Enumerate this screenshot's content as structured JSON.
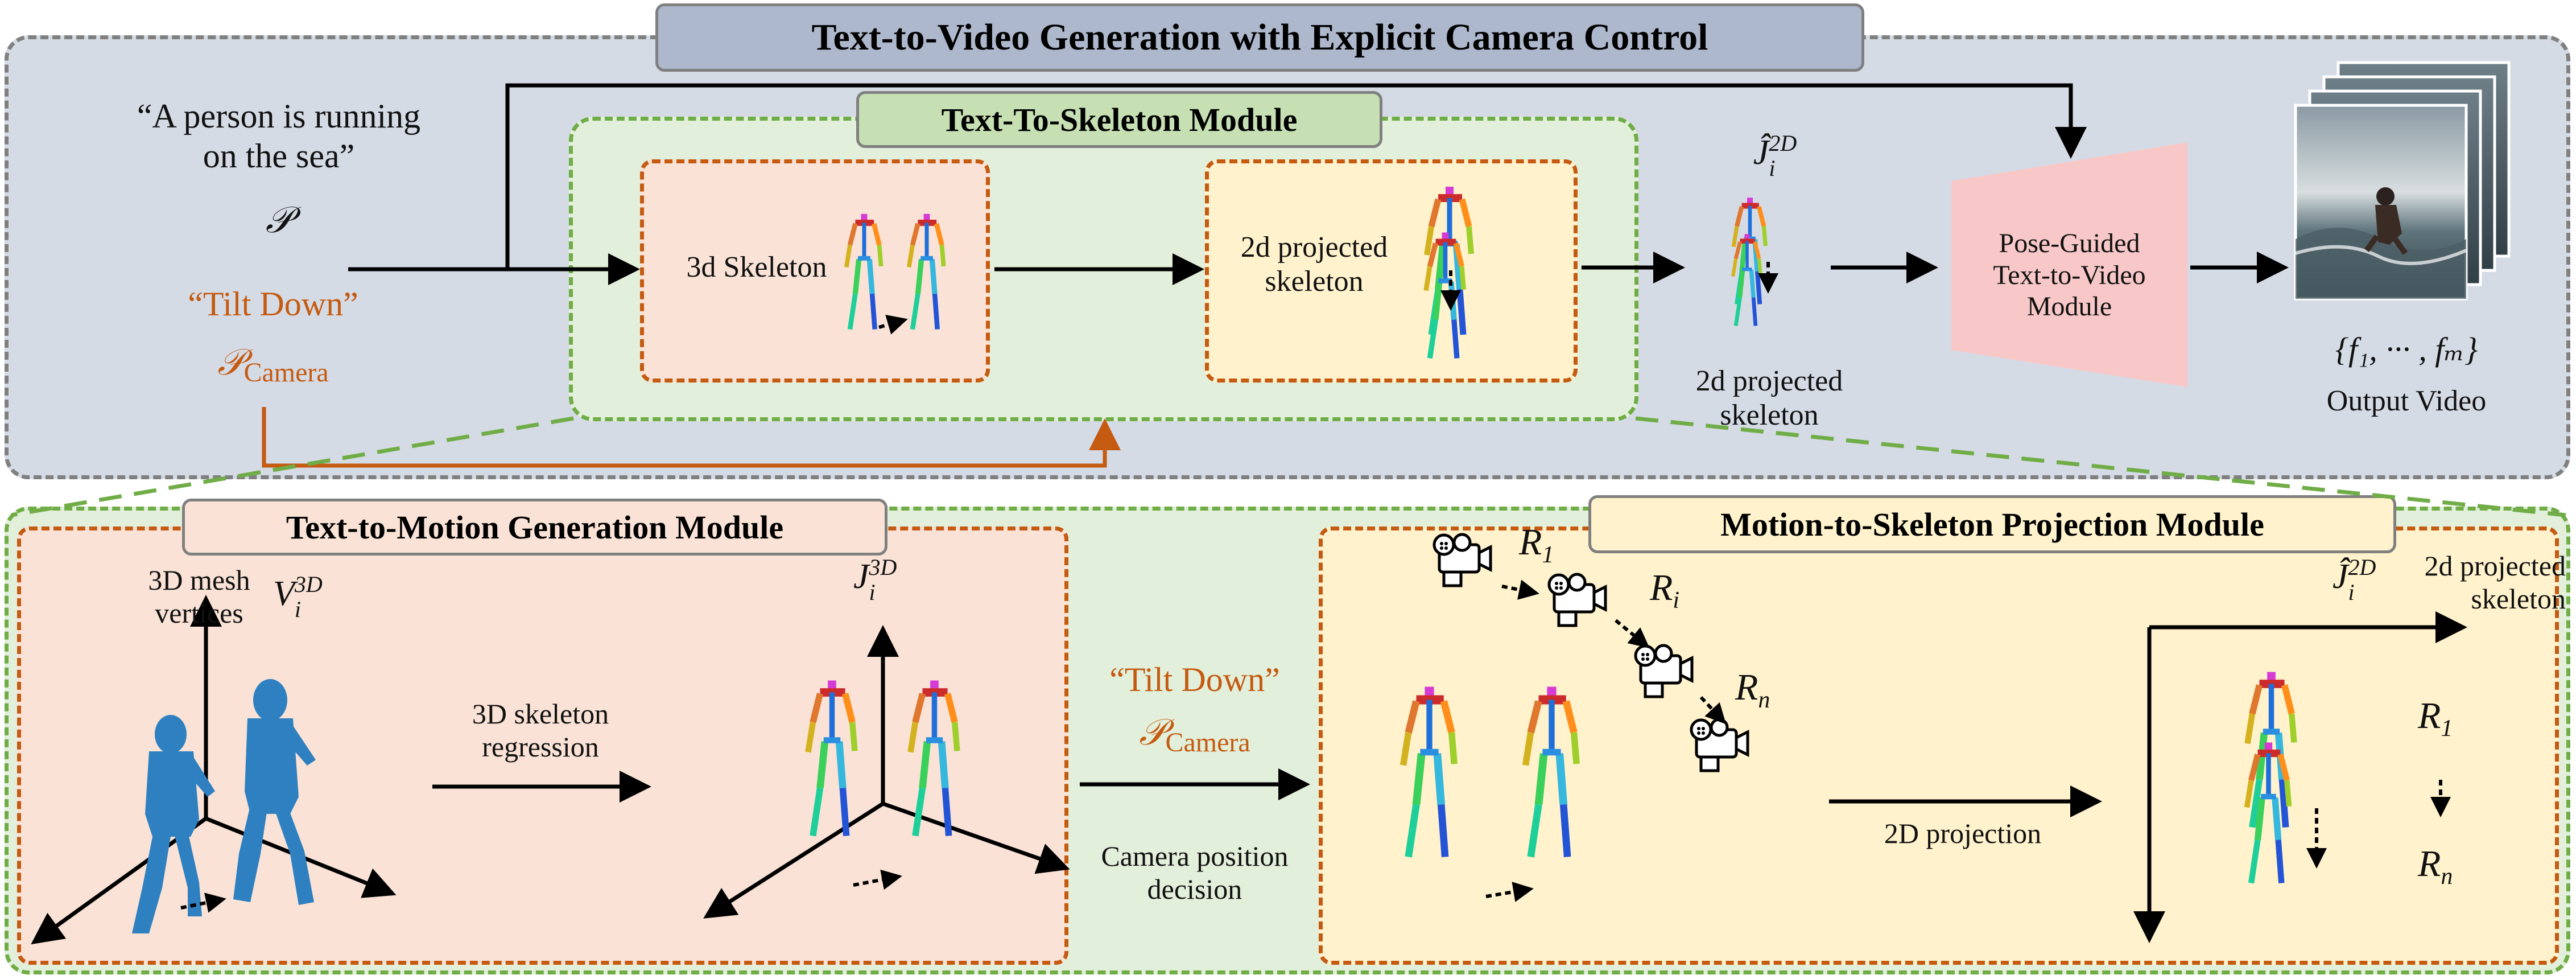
{
  "title": "Text-to-Video Generation with Explicit Camera Control",
  "prompt": {
    "line1": "“A person is running",
    "line2": "on the sea”",
    "symbol": "𝒫"
  },
  "camera_prompt": {
    "text": "“Tilt Down”",
    "symbol": "𝒫",
    "subscript": "Camera"
  },
  "t2s_module": {
    "title": "Text-To-Skeleton Module",
    "box1_label": "3d Skeleton",
    "box2_label_line1": "2d projected",
    "box2_label_line2": "skeleton"
  },
  "projected_skeleton": {
    "symbol": "Ĵ",
    "sub": "i",
    "sup": "2D",
    "caption_line1": "2d projected",
    "caption_line2": "skeleton"
  },
  "pose_guided": {
    "line1": "Pose-Guided",
    "line2": "Text-to-Video",
    "line3": "Module"
  },
  "output": {
    "formula": "{f₁, ··· , fₘ}",
    "label": "Output Video"
  },
  "t2m_module": {
    "title": "Text-to-Motion Generation Module",
    "mesh_line1": "3D mesh",
    "mesh_line2": "vertices",
    "v_symbol": "V",
    "v_sub": "i",
    "v_sup": "3D",
    "regression_line1": "3D skeleton",
    "regression_line2": "regression",
    "j_symbol": "J",
    "j_sub": "i",
    "j_sup": "3D"
  },
  "camera_decision": {
    "text": "“Tilt Down”",
    "symbol": "𝒫",
    "subscript": "Camera",
    "line1": "Camera position",
    "line2": "decision"
  },
  "m2s_module": {
    "title": "Motion-to-Skeleton Projection Module",
    "r1": "R",
    "r1_sub": "1",
    "ri": "R",
    "ri_sub": "i",
    "rn": "R",
    "rn_sub": "n",
    "projection": "2D projection",
    "j_symbol": "Ĵ",
    "j_sub": "i",
    "j_sup": "2D",
    "out_line1": "2d projected",
    "out_line2": "skeleton",
    "r1b": "R",
    "r1b_sub": "1",
    "rnb": "R",
    "rnb_sub": "n"
  },
  "colors": {
    "top_panel": "#d5dbe5",
    "green_panel": "#e2efda",
    "salmon_box": "#fae3d6",
    "yellow_box": "#fff2cc",
    "orange_border": "#c55a11",
    "green_border": "#70ad47",
    "title_bg": "#aeb8cc",
    "green_title_bg": "#c6e0b4",
    "pink_trap": "#f8c8c8"
  }
}
